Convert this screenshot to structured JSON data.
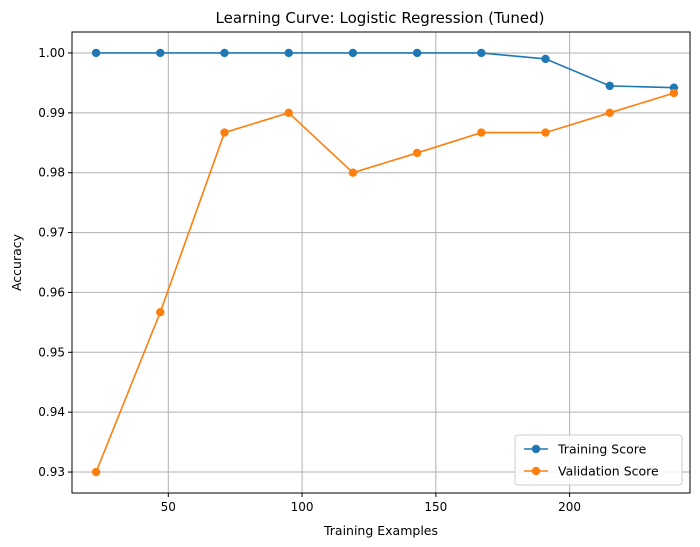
{
  "chart_data": {
    "type": "line",
    "title": "Learning Curve: Logistic Regression (Tuned)",
    "xlabel": "Training Examples",
    "ylabel": "Accuracy",
    "xlim": [
      14,
      245
    ],
    "ylim": [
      0.9265,
      1.0035
    ],
    "xticks": [
      50,
      100,
      150,
      200
    ],
    "yticks": [
      0.93,
      0.94,
      0.95,
      0.96,
      0.97,
      0.98,
      0.99,
      1.0
    ],
    "ytick_labels": [
      "0.93",
      "0.94",
      "0.95",
      "0.96",
      "0.97",
      "0.98",
      "0.99",
      "1.00"
    ],
    "grid": true,
    "legend_position": "lower-right",
    "x": [
      23,
      47,
      71,
      95,
      119,
      143,
      167,
      191,
      215,
      239
    ],
    "series": [
      {
        "name": "Training Score",
        "color": "#1f77b4",
        "marker": "circle",
        "values": [
          1.0,
          1.0,
          1.0,
          1.0,
          1.0,
          1.0,
          1.0,
          0.999,
          0.9945,
          0.9942
        ]
      },
      {
        "name": "Validation Score",
        "color": "#ff7f0e",
        "marker": "circle",
        "values": [
          0.93,
          0.9567,
          0.9867,
          0.99,
          0.98,
          0.9833,
          0.9867,
          0.9867,
          0.99,
          0.9933
        ]
      }
    ]
  }
}
